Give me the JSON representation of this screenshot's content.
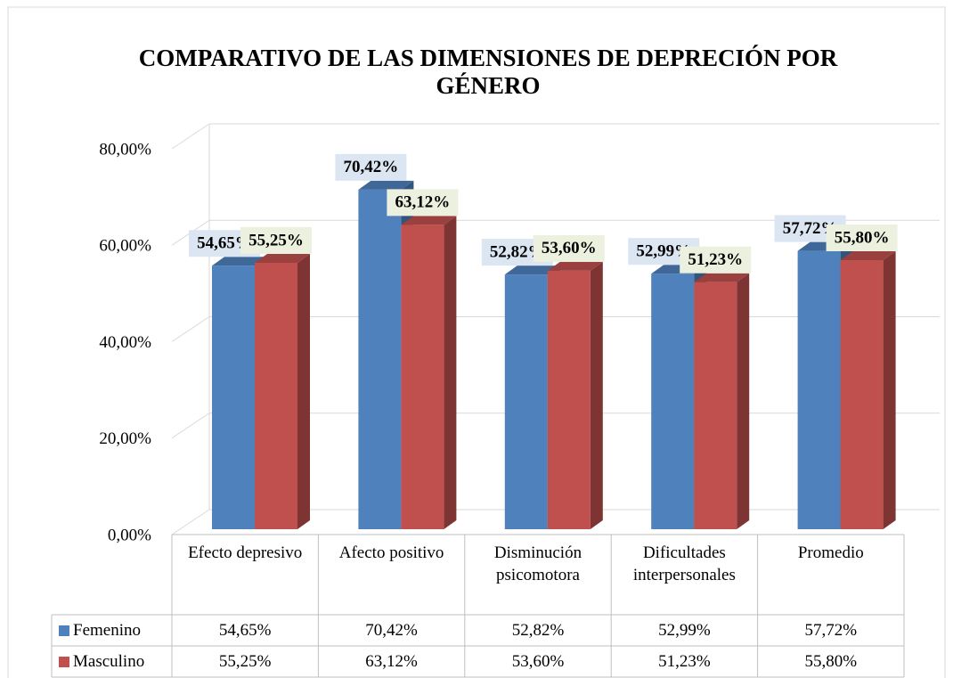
{
  "chart_data": {
    "type": "bar3d",
    "title": "COMPARATIVO DE LAS DIMENSIONES DE DEPRECIÓN POR GÉNERO",
    "categories": [
      "Efecto depresivo",
      "Afecto positivo",
      "Disminución psicomotora",
      "Dificultades interpersonales",
      "Promedio"
    ],
    "series": [
      {
        "name": "Femenino",
        "color": "#4f81bd",
        "label_bg": "#dce6f2",
        "values": [
          54.65,
          70.42,
          52.82,
          52.99,
          57.72
        ],
        "value_labels": [
          "54,65%",
          "70,42%",
          "52,82%",
          "52,99%",
          "57,72%"
        ]
      },
      {
        "name": "Masculino",
        "color": "#c0504d",
        "label_bg": "#ebf1de",
        "values": [
          55.25,
          63.12,
          53.6,
          51.23,
          55.8
        ],
        "value_labels": [
          "55,25%",
          "63,12%",
          "53,60%",
          "51,23%",
          "55,80%"
        ]
      }
    ],
    "ylim": [
      0,
      80
    ],
    "yticks": [
      {
        "value": 0,
        "label": "0,00%"
      },
      {
        "value": 20,
        "label": "20,00%"
      },
      {
        "value": 40,
        "label": "40,00%"
      },
      {
        "value": 60,
        "label": "60,00%"
      },
      {
        "value": 80,
        "label": "80,00%"
      }
    ],
    "grid": true,
    "data_table": true
  }
}
